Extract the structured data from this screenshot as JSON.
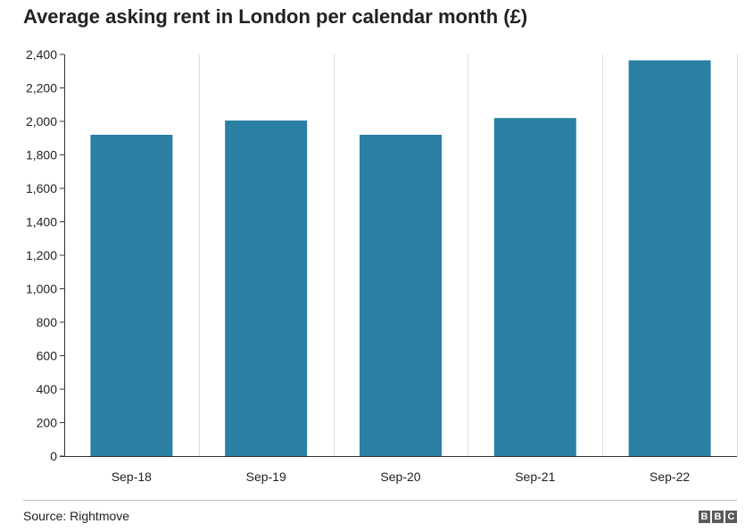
{
  "title": "Average asking rent in London per calendar month (£)",
  "source": "Source: Rightmove",
  "logo": [
    "B",
    "B",
    "C"
  ],
  "colors": {
    "bar": "#2a7fa3",
    "grid": "#dcdcdc",
    "axis": "#333333"
  },
  "chart_data": {
    "type": "bar",
    "categories": [
      "Sep-18",
      "Sep-19",
      "Sep-20",
      "Sep-21",
      "Sep-22"
    ],
    "values": [
      1920,
      2005,
      1920,
      2020,
      2365
    ],
    "ylim": [
      0,
      2400
    ],
    "yticks": [
      0,
      200,
      400,
      600,
      800,
      1000,
      1200,
      1400,
      1600,
      1800,
      2000,
      2200,
      2400
    ],
    "ytick_labels": [
      "0",
      "200",
      "400",
      "600",
      "800",
      "1,000",
      "1,200",
      "1,400",
      "1,600",
      "1,800",
      "2,000",
      "2,200",
      "2,400"
    ],
    "grid": "vertical",
    "xlabel": "",
    "ylabel": ""
  }
}
